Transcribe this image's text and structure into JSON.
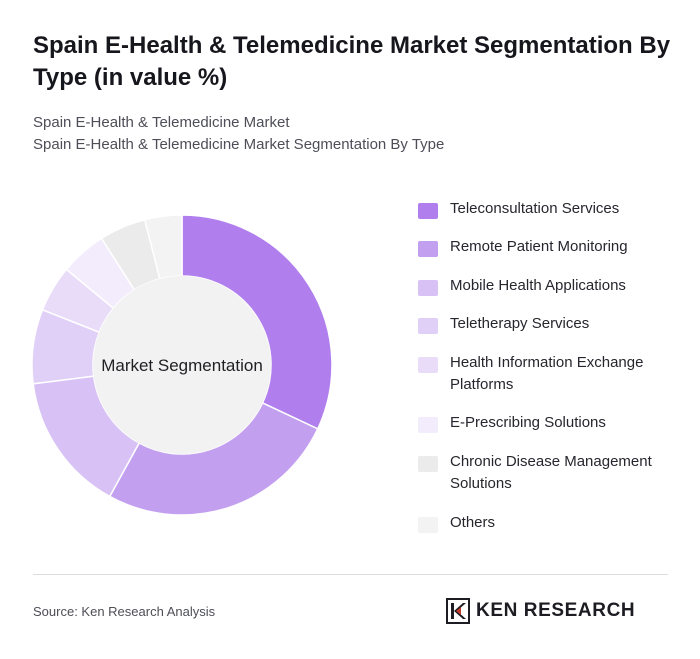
{
  "header": {
    "title": "Spain E-Health & Telemedicine Market Segmentation By Type (in value %)",
    "subtitle_1": "Spain E-Health & Telemedicine Market",
    "subtitle_2": "Spain E-Health & Telemedicine Market Segmentation By Type"
  },
  "chart_data": {
    "type": "pie",
    "variant": "donut",
    "center_label": "Market Segmentation",
    "legend_position": "right",
    "categories": [
      "Teleconsultation Services",
      "Remote Patient Monitoring",
      "Mobile Health Applications",
      "Teletherapy Services",
      "Health Information Exchange Platforms",
      "E-Prescribing Solutions",
      "Chronic Disease Management Solutions",
      "Others"
    ],
    "values": [
      32,
      26,
      15,
      8,
      5,
      5,
      5,
      4
    ],
    "colors": [
      "#b17eed",
      "#c39ff0",
      "#d8c1f5",
      "#e0cff7",
      "#e9dcf9",
      "#f3ecfc",
      "#ebebeb",
      "#f3f3f3"
    ]
  },
  "footer": {
    "source": "Source: Ken Research Analysis",
    "logo_text": "KEN RESEARCH"
  }
}
